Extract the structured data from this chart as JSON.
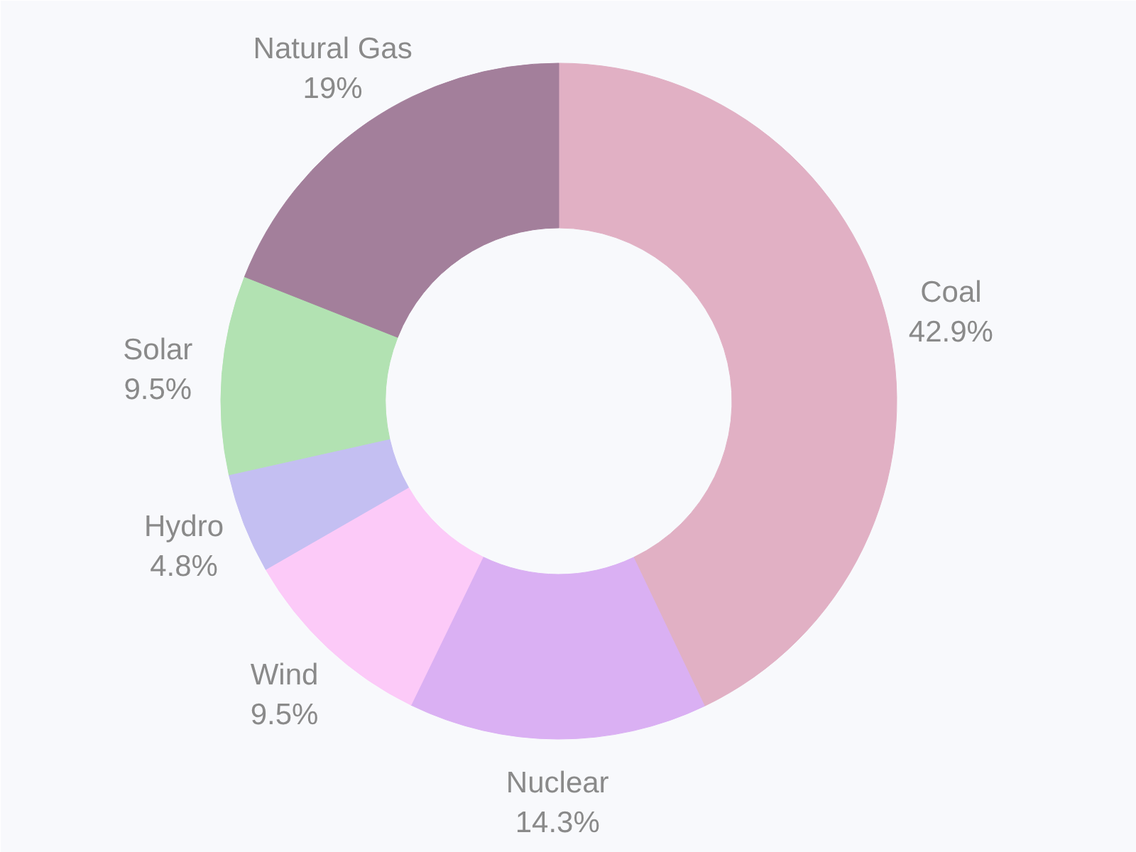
{
  "chart_data": {
    "type": "donut",
    "categories": [
      "Coal",
      "Nuclear",
      "Wind",
      "Hydro",
      "Solar",
      "Natural Gas"
    ],
    "values": [
      42.9,
      14.3,
      9.5,
      4.8,
      9.5,
      19
    ],
    "colors": [
      "#e1b0c4",
      "#dab0f3",
      "#fccaf8",
      "#c4bff2",
      "#b2e2b2",
      "#a37f9b"
    ],
    "value_labels": [
      "42.9%",
      "14.3%",
      "9.5%",
      "4.8%",
      "9.5%",
      "19%"
    ],
    "legend": false
  }
}
